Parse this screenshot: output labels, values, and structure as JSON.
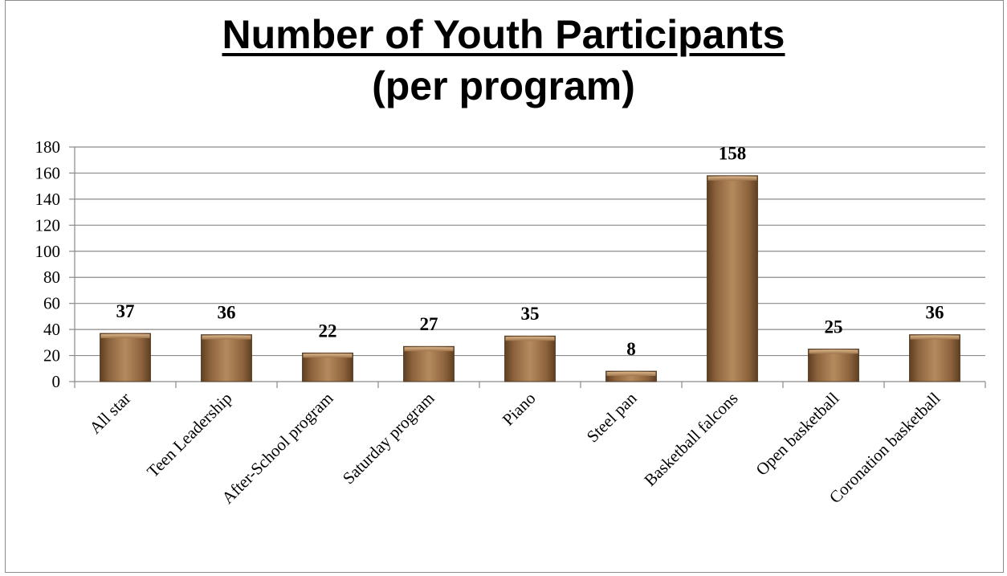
{
  "chart_data": {
    "type": "bar",
    "title": "Number of Youth Participants",
    "subtitle": "(per program)",
    "categories": [
      "All star",
      "Teen Leadership",
      "After-School program",
      "Saturday program",
      "Piano",
      "Steel pan",
      "Basketball falcons",
      "Open basketball",
      "Coronation basketball"
    ],
    "values": [
      37,
      36,
      22,
      27,
      35,
      8,
      158,
      25,
      36
    ],
    "ylim": [
      0,
      180
    ],
    "yticks": [
      0,
      20,
      40,
      60,
      80,
      100,
      120,
      140,
      160,
      180
    ],
    "grid": true,
    "bar_color": "#9b7048"
  }
}
